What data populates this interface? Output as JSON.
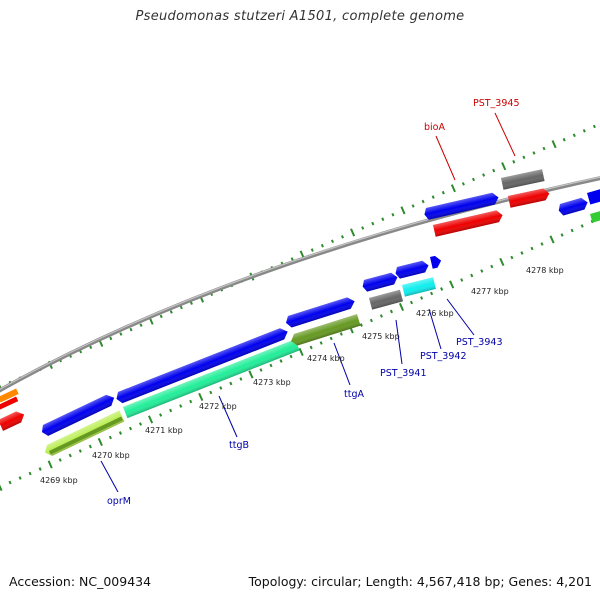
{
  "title": "Pseudomonas stutzeri A1501, complete genome",
  "footer": {
    "accession": "Accession: NC_009434",
    "topology": "Topology: circular; Length: 4,567,418 bp; Genes: 4,201"
  },
  "colors": {
    "backbone": "#8a8a8a",
    "tick": "#2e8b2e",
    "forward_label": "#cc0000",
    "reverse_label": "#0000aa"
  },
  "ticks": [
    "4269 kbp",
    "4270 kbp",
    "4271 kbp",
    "4272 kbp",
    "4273 kbp",
    "4274 kbp",
    "4275 kbp",
    "4276 kbp",
    "4277 kbp",
    "4278 kbp"
  ],
  "gene_labels": {
    "forward": [
      "bioA",
      "PST_3945"
    ],
    "reverse": [
      "oprM",
      "ttgB",
      "ttgA",
      "PST_3941",
      "PST_3942",
      "PST_3943"
    ]
  },
  "features": [
    {
      "name": "cds-1",
      "track": "forward-cds",
      "color": "#0000ee"
    },
    {
      "name": "cds-2",
      "track": "forward-cds",
      "color": "#0000ee"
    },
    {
      "name": "cds-3",
      "track": "forward-cds",
      "color": "#0000ee"
    },
    {
      "name": "cds-4",
      "track": "forward-cds",
      "color": "#0000ee"
    },
    {
      "name": "cds-5",
      "track": "forward-cds",
      "color": "#0000ee"
    },
    {
      "name": "cds-6",
      "track": "forward-cds",
      "color": "#0000ee"
    },
    {
      "name": "cds-7",
      "track": "forward-cds",
      "color": "#0000ee"
    },
    {
      "name": "cds-8",
      "track": "forward-cds",
      "color": "#0000ee"
    },
    {
      "name": "cds-9",
      "track": "forward-cds",
      "color": "#666666"
    },
    {
      "name": "cds-10",
      "track": "forward-cds",
      "color": "#0000ee"
    },
    {
      "name": "cds-11",
      "track": "forward-cds",
      "color": "#0000ee"
    },
    {
      "name": "cog-1",
      "track": "forward-cog",
      "color": "#ee0000"
    },
    {
      "name": "cog-2",
      "track": "forward-cog",
      "color": "#ee0000"
    },
    {
      "name": "cog-3",
      "track": "forward-cog",
      "color": "#ff8800"
    },
    {
      "name": "cog-4",
      "track": "forward-cog",
      "color": "#ee0000"
    },
    {
      "name": "cog-5",
      "track": "forward-cog",
      "color": "#33cc33"
    },
    {
      "name": "cog-6",
      "track": "reverse-cog",
      "color": "#bbee55"
    },
    {
      "name": "cog-7",
      "track": "reverse-cog",
      "color": "#22ee99"
    },
    {
      "name": "cog-8",
      "track": "reverse-cog",
      "color": "#669922"
    },
    {
      "name": "cog-9",
      "track": "reverse-cog",
      "color": "#666666"
    },
    {
      "name": "cog-10",
      "track": "reverse-cog",
      "color": "#11eeee"
    },
    {
      "name": "cog-11",
      "track": "reverse-cog",
      "color": "#669922"
    }
  ]
}
